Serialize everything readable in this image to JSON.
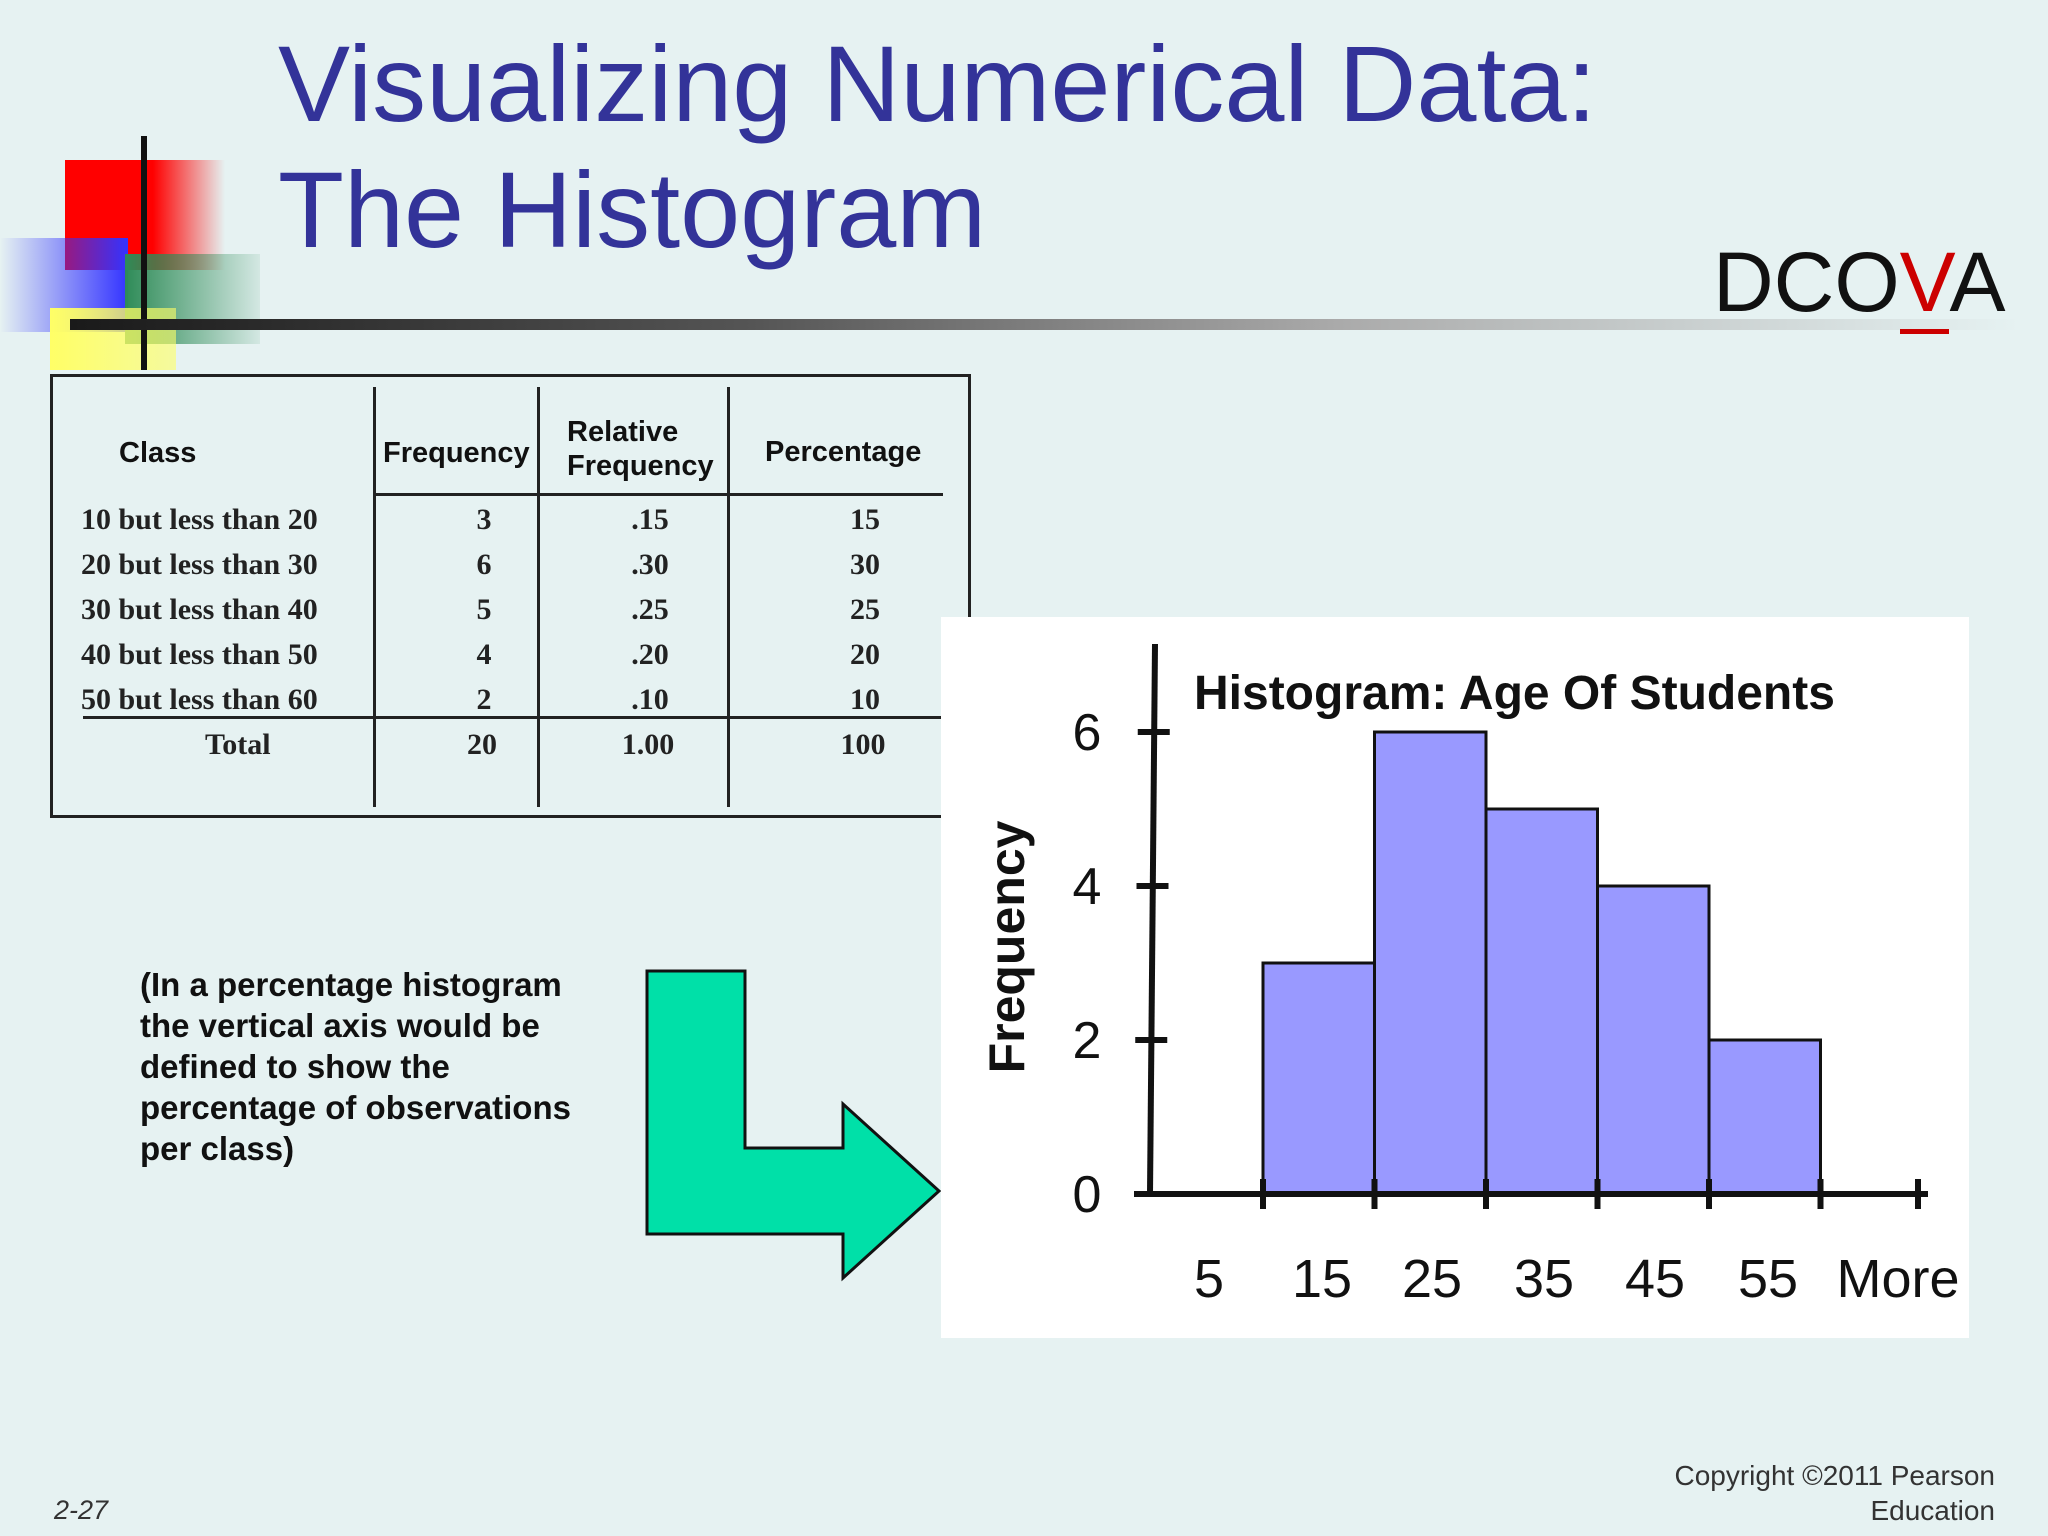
{
  "slide": {
    "title_line1": "Visualizing Numerical Data:",
    "title_line2": "The Histogram",
    "badge": {
      "prefix": "DCO",
      "highlight": "V",
      "suffix": "A"
    },
    "note": "(In a percentage histogram  the vertical axis would be defined to show the percentage of observations per class)",
    "slide_number": "2-27",
    "copyright_line1": "Copyright ©2011 Pearson",
    "copyright_line2": "Education"
  },
  "table": {
    "headers": {
      "class": "Class",
      "frequency": "Frequency",
      "relative_line1": "Relative",
      "relative_line2": "Frequency",
      "percentage": "Percentage"
    },
    "rows": [
      {
        "class": "10 but less than 20",
        "frequency": "3",
        "relative": ".15",
        "percentage": "15"
      },
      {
        "class": "20 but less than 30",
        "frequency": "6",
        "relative": ".30",
        "percentage": "30"
      },
      {
        "class": "30 but less than 40",
        "frequency": "5",
        "relative": ".25",
        "percentage": "25"
      },
      {
        "class": "40 but less than 50",
        "frequency": "4",
        "relative": ".20",
        "percentage": "20"
      },
      {
        "class": "50 but less than 60",
        "frequency": "2",
        "relative": ".10",
        "percentage": "10"
      }
    ],
    "total": {
      "label": "Total",
      "frequency": "20",
      "relative": "1.00",
      "percentage": "100"
    }
  },
  "colors": {
    "title": "#333399",
    "bar_fill": "#9999ff",
    "arrow_fill": "#00e0a8",
    "accent_red": "#cc0000",
    "background": "#e6f2f2"
  },
  "chart_data": {
    "type": "bar",
    "title": "Histogram: Age Of Students",
    "ylabel": "Frequency",
    "xlabel": "",
    "categories": [
      "5",
      "15",
      "25",
      "35",
      "45",
      "55",
      "More"
    ],
    "values": [
      0,
      3,
      6,
      5,
      4,
      2,
      0
    ],
    "ylim": [
      0,
      8
    ],
    "yticks": [
      0,
      2,
      4,
      6,
      8
    ],
    "grid": false,
    "legend": "none"
  }
}
